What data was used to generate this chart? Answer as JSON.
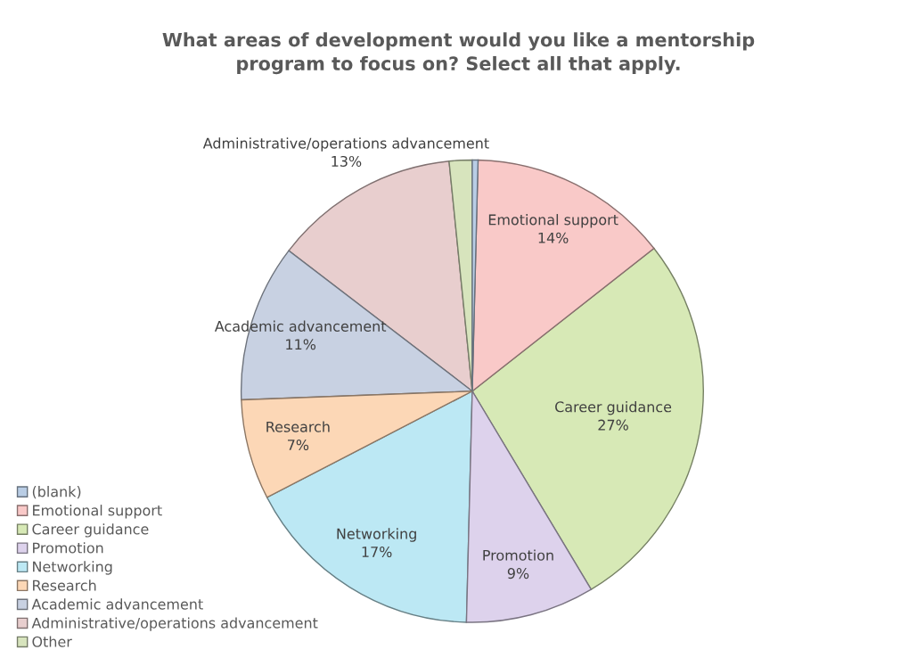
{
  "chart_data": {
    "type": "pie",
    "title": "What areas of development would you like a mentorship\nprogram to focus on? Select all that apply.",
    "categories": [
      "(blank)",
      "Emotional support",
      "Career guidance",
      "Promotion",
      "Networking",
      "Research",
      "Academic advancement",
      "Administrative/operations advancement",
      "Other"
    ],
    "values": [
      0.4,
      14,
      27,
      9,
      17,
      7,
      11,
      13,
      1.6
    ],
    "value_labels": [
      null,
      "14%",
      "27%",
      "9%",
      "17%",
      "7%",
      "11%",
      "13%",
      null
    ],
    "colors": [
      "#b9cde5",
      "#f9c9c8",
      "#d7e9b6",
      "#ddd2ec",
      "#bce8f4",
      "#fcd7b6",
      "#c8d1e2",
      "#e8cece",
      "#d7e4bd"
    ],
    "legend": "bottom left"
  }
}
